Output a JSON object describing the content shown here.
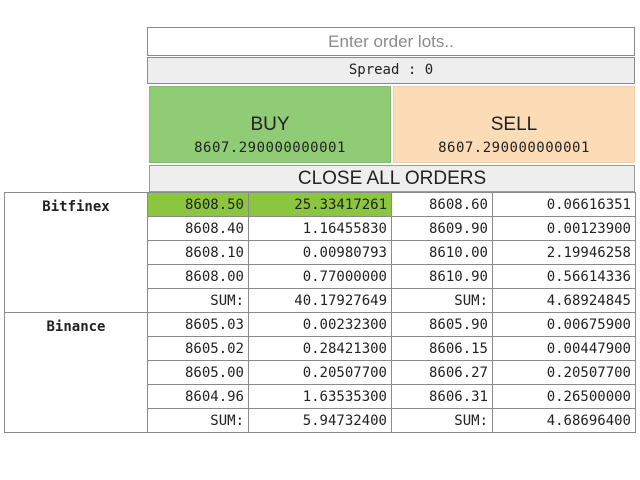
{
  "order": {
    "lots_placeholder": "Enter order lots..",
    "lots_value": "",
    "spread_label": "Spread : 0"
  },
  "buy": {
    "label": "BUY",
    "price": "8607.290000000001"
  },
  "sell": {
    "label": "SELL",
    "price": "8607.290000000001"
  },
  "close_all_label": "CLOSE ALL ORDERS",
  "exchanges": [
    {
      "name": "Bitfinex",
      "rows": [
        [
          "8608.50",
          "25.33417261",
          "8608.60",
          "0.06616351"
        ],
        [
          "8608.40",
          "1.16455830",
          "8609.90",
          "0.00123900"
        ],
        [
          "8608.10",
          "0.00980793",
          "8610.00",
          "2.19946258"
        ],
        [
          "8608.00",
          "0.77000000",
          "8610.90",
          "0.56614336"
        ]
      ],
      "sum": [
        "SUM:",
        "40.17927649",
        "SUM:",
        "4.68924845"
      ]
    },
    {
      "name": "Binance",
      "rows": [
        [
          "8605.03",
          "0.00232300",
          "8605.90",
          "0.00675900"
        ],
        [
          "8605.02",
          "0.28421300",
          "8606.15",
          "0.00447900"
        ],
        [
          "8605.00",
          "0.20507700",
          "8606.27",
          "0.20507700"
        ],
        [
          "8604.96",
          "1.63535300",
          "8606.31",
          "0.26500000"
        ]
      ],
      "sum": [
        "SUM:",
        "5.94732400",
        "SUM:",
        "4.68696400"
      ]
    }
  ],
  "colors": {
    "buy_bg": "#90cc76",
    "sell_bg": "#fbdcb7",
    "highlight": "#8cc53f"
  }
}
